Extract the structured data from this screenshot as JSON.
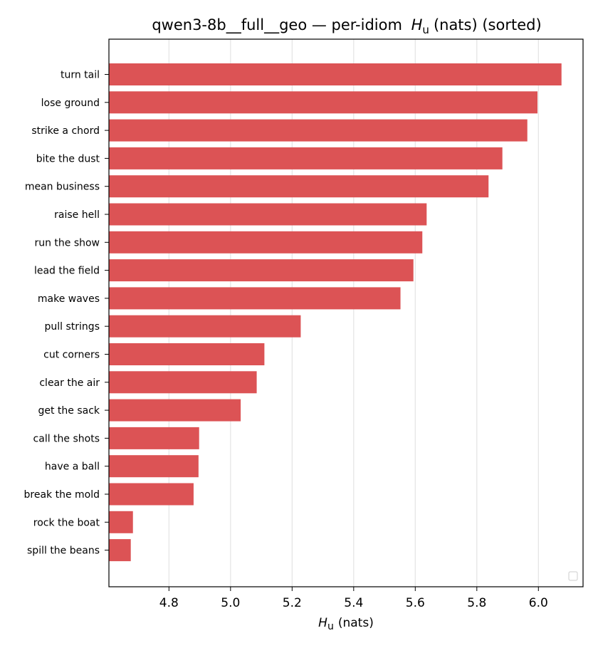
{
  "chart_data": {
    "type": "bar",
    "orientation": "horizontal",
    "title": "qwen3-8b__full__geo — per-idiom",
    "title_symbol": "H",
    "title_subscript": "u",
    "title_suffix": "(nats) (sorted)",
    "xlabel_symbol": "H",
    "xlabel_subscript": "u",
    "xlabel_suffix": "(nats)",
    "categories": [
      "turn tail",
      "lose ground",
      "strike a chord",
      "bite the dust",
      "mean business",
      "raise hell",
      "run the show",
      "lead the field",
      "make waves",
      "pull strings",
      "cut corners",
      "clear the air",
      "get the sack",
      "call the shots",
      "have a ball",
      "break the mold",
      "rock the boat",
      "spill the beans"
    ],
    "values": [
      6.075,
      5.997,
      5.964,
      5.883,
      5.838,
      5.637,
      5.623,
      5.594,
      5.552,
      5.228,
      5.11,
      5.085,
      5.033,
      4.898,
      4.896,
      4.88,
      4.683,
      4.676
    ],
    "xlim": [
      4.605,
      6.145
    ],
    "xticks": [
      "4.8",
      "5.0",
      "5.2",
      "5.4",
      "5.6",
      "5.8",
      "6.0"
    ],
    "grid": "x",
    "legend": "empty, lower-right",
    "bar_color": "#dc5355"
  }
}
